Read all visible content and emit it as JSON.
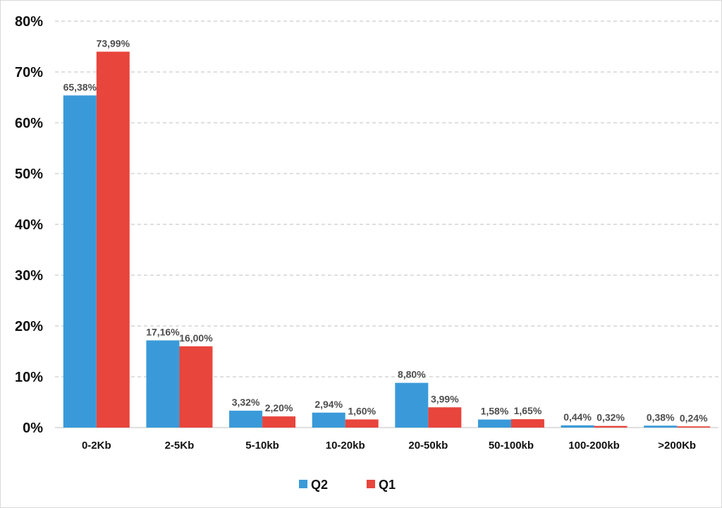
{
  "chart_data": {
    "type": "bar",
    "categories": [
      "0-2Kb",
      "2-5Kb",
      "5-10kb",
      "10-20kb",
      "20-50kb",
      "50-100kb",
      "100-200kb",
      ">200Kb"
    ],
    "series": [
      {
        "name": "Q2",
        "color": "#3a9ad9",
        "values": [
          65.38,
          17.16,
          3.32,
          2.94,
          8.8,
          1.58,
          0.44,
          0.38
        ],
        "labels": [
          "65,38%",
          "17,16%",
          "3,32%",
          "2,94%",
          "8,80%",
          "1,58%",
          "0,44%",
          "0,38%"
        ]
      },
      {
        "name": "Q1",
        "color": "#e8453c",
        "values": [
          73.99,
          16.0,
          2.2,
          1.6,
          3.99,
          1.65,
          0.32,
          0.24
        ],
        "labels": [
          "73,99%",
          "16,00%",
          "2,20%",
          "1,60%",
          "3,99%",
          "1,65%",
          "0,32%",
          "0,24%"
        ]
      }
    ],
    "ylim": [
      0,
      80
    ],
    "yticks": [
      0,
      10,
      20,
      30,
      40,
      50,
      60,
      70,
      80
    ],
    "ytick_labels": [
      "0%",
      "10%",
      "20%",
      "30%",
      "40%",
      "50%",
      "60%",
      "70%",
      "80%"
    ],
    "grid": true,
    "gridline_color": "#bfbfbf",
    "legend_position": "bottom-center",
    "title": "",
    "xlabel": "",
    "ylabel": ""
  }
}
